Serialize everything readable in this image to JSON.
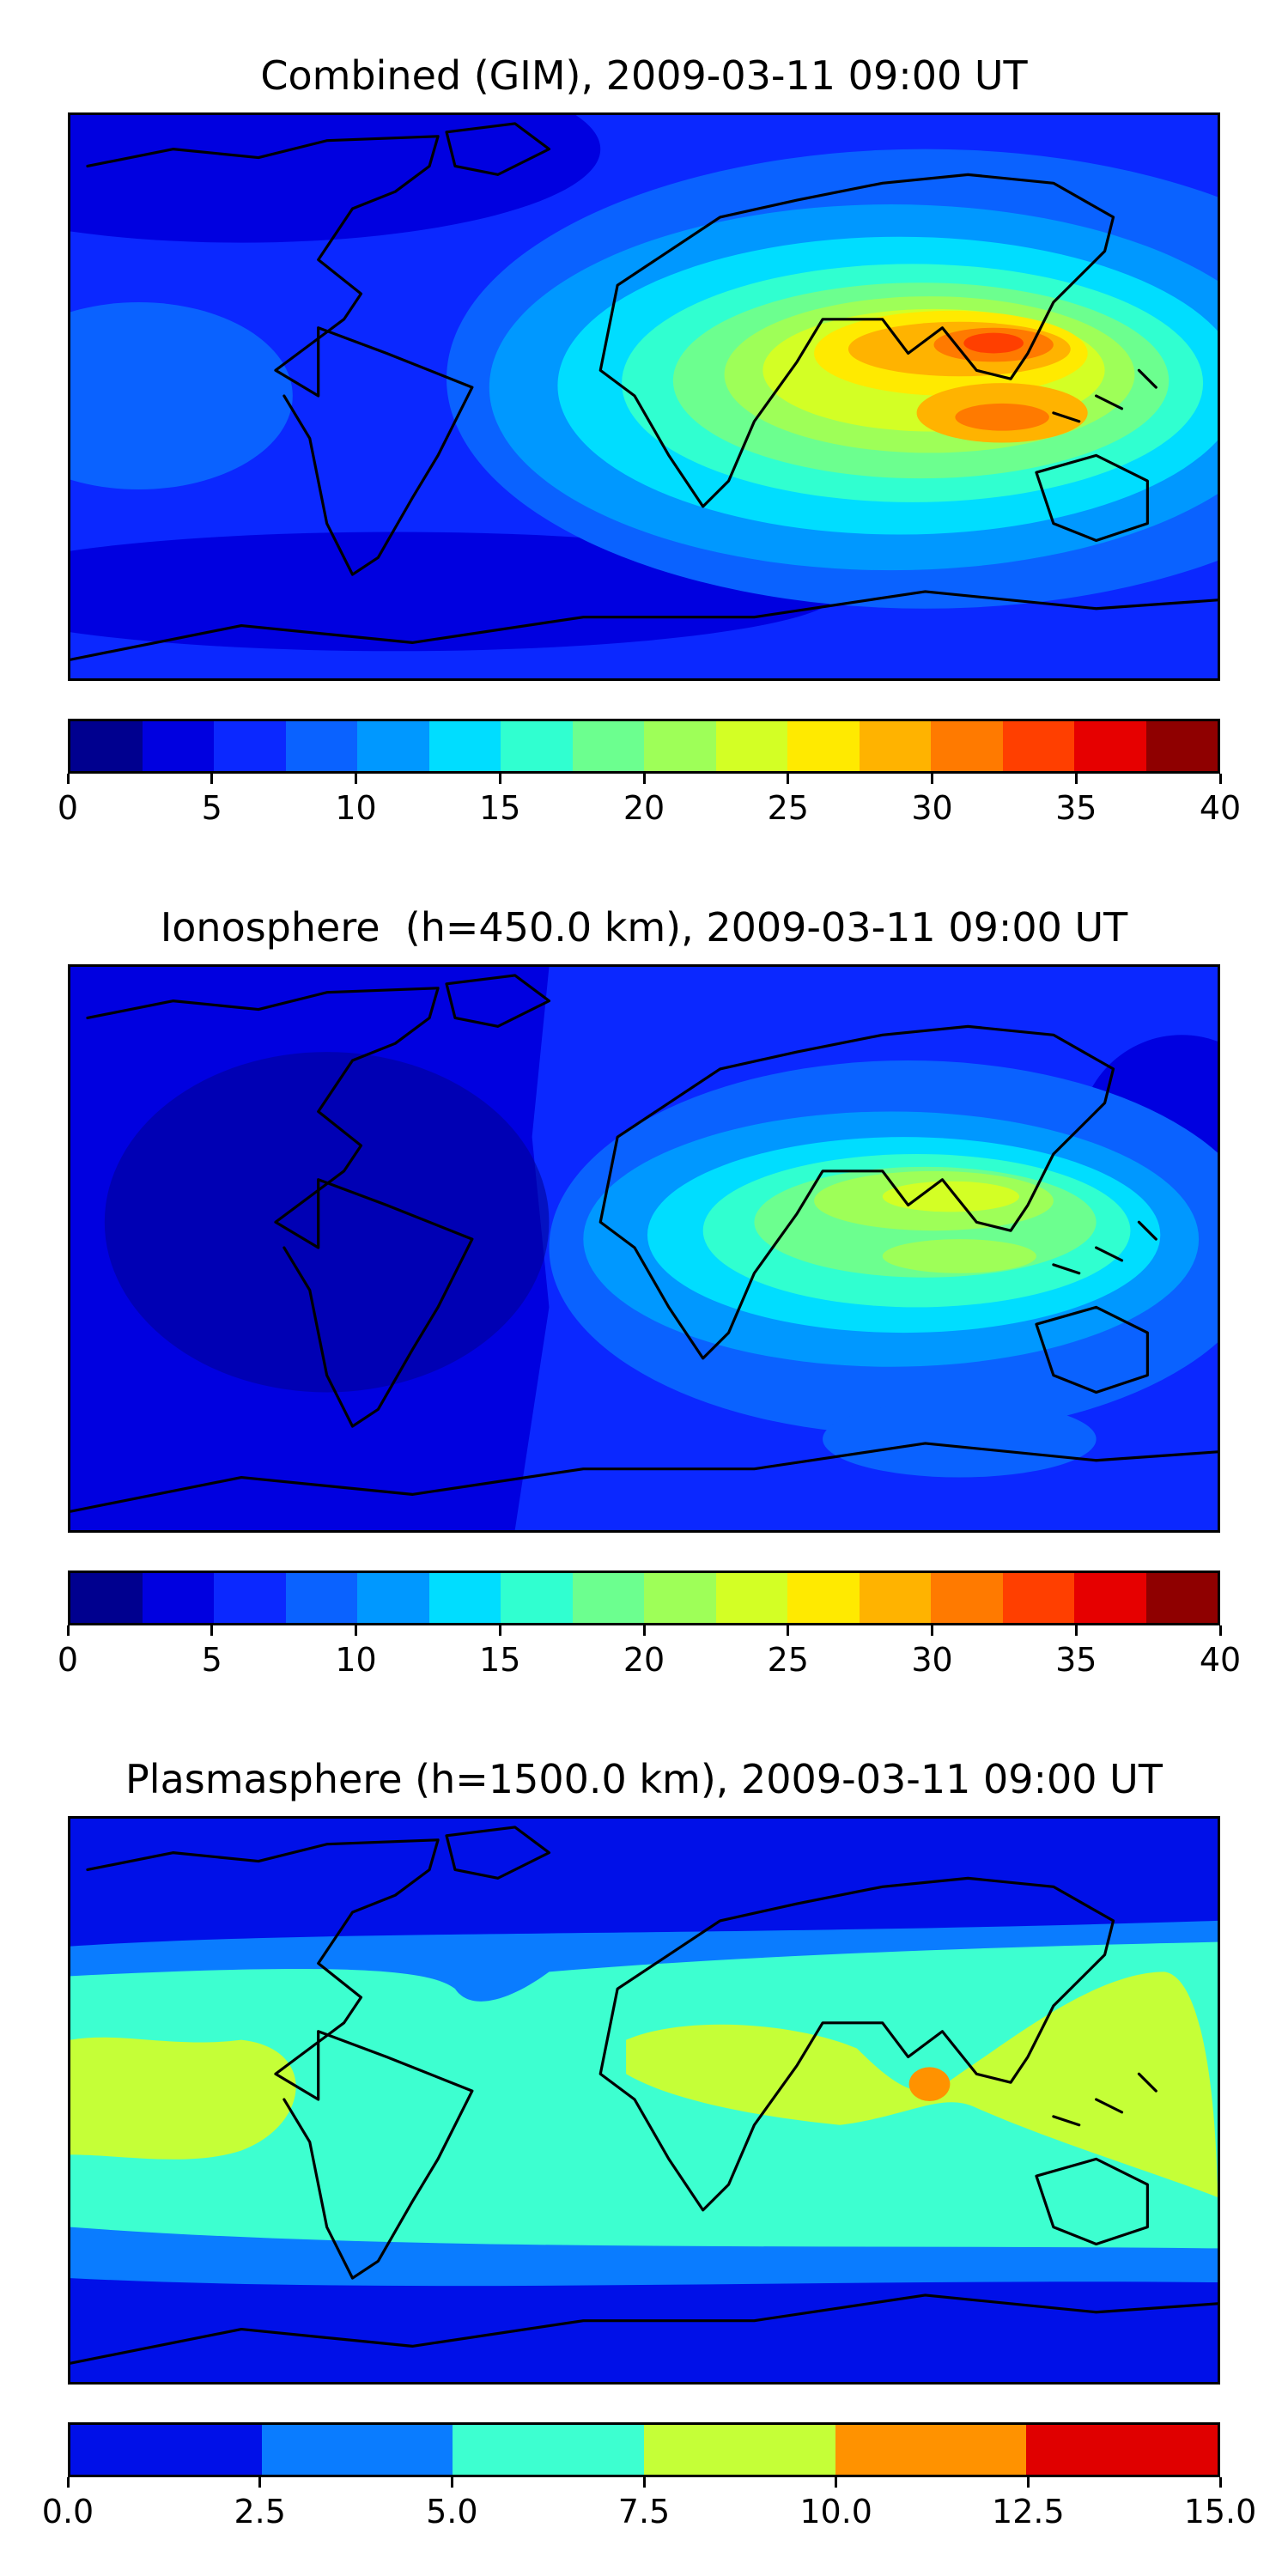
{
  "panels": [
    {
      "title": "Combined (GIM), 2009-03-11 09:00 UT",
      "colorbar": {
        "ticks": [
          "0",
          "5",
          "10",
          "15",
          "20",
          "25",
          "30",
          "35",
          "40"
        ],
        "colors": [
          "#00008f",
          "#0000e0",
          "#0b28ff",
          "#0a62ff",
          "#0098ff",
          "#00ddff",
          "#30ffd0",
          "#6cff8f",
          "#9eff58",
          "#d3ff25",
          "#ffea00",
          "#ffb300",
          "#ff7a00",
          "#ff3f00",
          "#e60000",
          "#8f0000"
        ]
      }
    },
    {
      "title": "Ionosphere  (h=450.0 km), 2009-03-11 09:00 UT",
      "colorbar": {
        "ticks": [
          "0",
          "5",
          "10",
          "15",
          "20",
          "25",
          "30",
          "35",
          "40"
        ],
        "colors": [
          "#00008f",
          "#0000e0",
          "#0b28ff",
          "#0a62ff",
          "#0098ff",
          "#00ddff",
          "#30ffd0",
          "#6cff8f",
          "#9eff58",
          "#d3ff25",
          "#ffea00",
          "#ffb300",
          "#ff7a00",
          "#ff3f00",
          "#e60000",
          "#8f0000"
        ]
      }
    },
    {
      "title": "Plasmasphere (h=1500.0 km), 2009-03-11 09:00 UT",
      "colorbar": {
        "ticks": [
          "0.0",
          "2.5",
          "5.0",
          "7.5",
          "10.0",
          "12.5",
          "15.0"
        ],
        "colors": [
          "#0010e8",
          "#0a7cff",
          "#3dffd0",
          "#c5ff37",
          "#ff9200",
          "#e00000"
        ]
      }
    }
  ]
}
